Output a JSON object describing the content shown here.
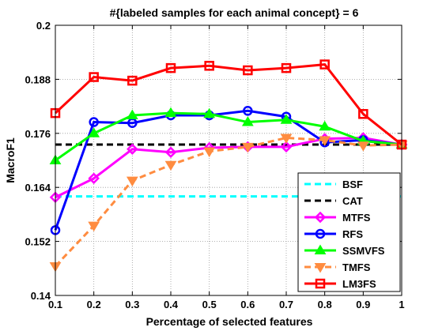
{
  "chart_data": {
    "type": "line",
    "title": "#{labeled samples for each animal concept} = 6",
    "xlabel": "Percentage of selected features",
    "ylabel": "MacroF1",
    "xlim": [
      0.1,
      1.0
    ],
    "ylim": [
      0.14,
      0.2
    ],
    "xticks": [
      "0.1",
      "0.2",
      "0.3",
      "0.4",
      "0.5",
      "0.6",
      "0.7",
      "0.8",
      "0.9",
      "1"
    ],
    "yticks": [
      "0.14",
      "0.152",
      "0.164",
      "0.176",
      "0.188",
      "0.2"
    ],
    "grid": true,
    "legend_position": "bottom-right",
    "x": [
      0.1,
      0.2,
      0.3,
      0.4,
      0.5,
      0.6,
      0.7,
      0.8,
      0.9,
      1.0
    ],
    "series": [
      {
        "name": "BSF",
        "color": "#00ffff",
        "style": "dashed",
        "marker": "none",
        "values": [
          0.162,
          0.162,
          0.162,
          0.162,
          0.162,
          0.162,
          0.162,
          0.162,
          0.162,
          0.162
        ]
      },
      {
        "name": "CAT",
        "color": "#000000",
        "style": "dashed",
        "marker": "none",
        "values": [
          0.1735,
          0.1735,
          0.1735,
          0.1735,
          0.1735,
          0.1735,
          0.1735,
          0.1735,
          0.1735,
          0.1735
        ]
      },
      {
        "name": "MTFS",
        "color": "#ff00ff",
        "style": "solid",
        "marker": "diamond",
        "values": [
          0.1618,
          0.166,
          0.1725,
          0.1718,
          0.1728,
          0.173,
          0.173,
          0.1748,
          0.175,
          0.1735
        ]
      },
      {
        "name": "RFS",
        "color": "#0000ff",
        "style": "solid",
        "marker": "circle",
        "values": [
          0.1545,
          0.1785,
          0.1783,
          0.18,
          0.18,
          0.181,
          0.1797,
          0.174,
          0.1745,
          0.1735
        ]
      },
      {
        "name": "SSMVFS",
        "color": "#00ff00",
        "style": "solid",
        "marker": "triangle-up",
        "values": [
          0.17,
          0.176,
          0.18,
          0.1805,
          0.1803,
          0.1785,
          0.179,
          0.1775,
          0.1743,
          0.1735
        ]
      },
      {
        "name": "TMFS",
        "color": "#ff8c40",
        "style": "dashed",
        "marker": "triangle-down",
        "values": [
          0.1465,
          0.1555,
          0.1655,
          0.169,
          0.172,
          0.173,
          0.175,
          0.1745,
          0.1733,
          0.1735
        ]
      },
      {
        "name": "LM3FS",
        "color": "#ff0000",
        "style": "solid",
        "marker": "square",
        "values": [
          0.1805,
          0.1885,
          0.1877,
          0.1905,
          0.191,
          0.19,
          0.1905,
          0.1913,
          0.1803,
          0.1735
        ]
      }
    ]
  }
}
